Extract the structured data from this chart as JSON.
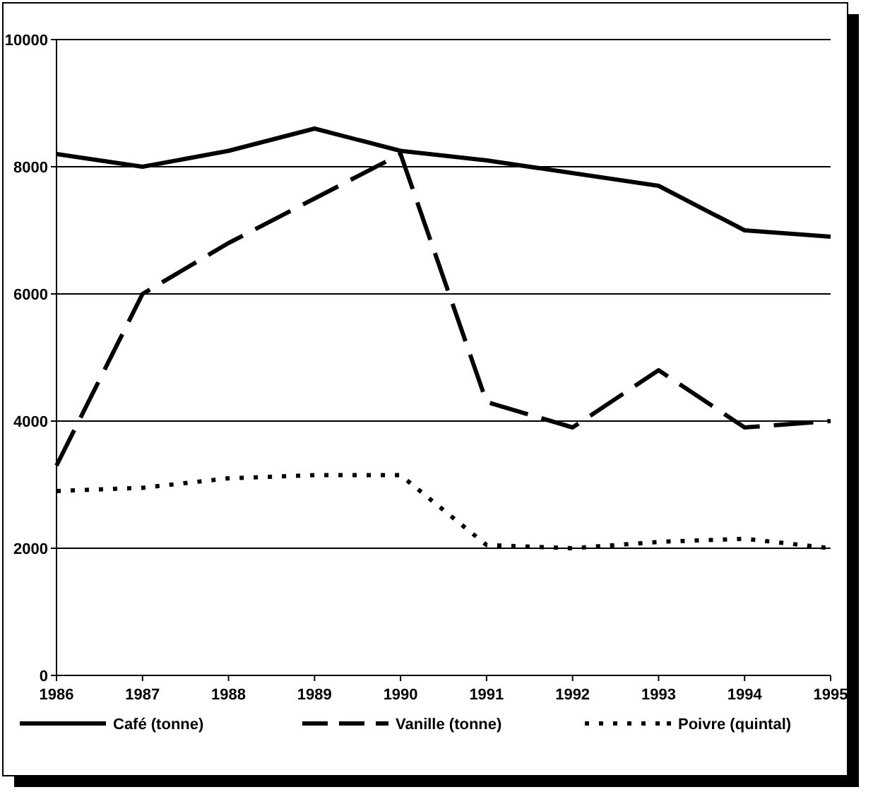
{
  "chart_data": {
    "type": "line",
    "x": [
      1986,
      1987,
      1988,
      1989,
      1990,
      1991,
      1992,
      1993,
      1994,
      1995
    ],
    "xlim": [
      1986,
      1995
    ],
    "xticks": [
      1986,
      1987,
      1988,
      1989,
      1990,
      1991,
      1992,
      1993,
      1994,
      1995
    ],
    "ylim": [
      0,
      10000
    ],
    "yticks": [
      0,
      2000,
      4000,
      6000,
      8000,
      10000
    ],
    "grid": "y",
    "legend": "bottom",
    "marker": "none",
    "series": [
      {
        "name": "Café (tonne)",
        "color": "#000000",
        "line_style": "solid",
        "values": [
          8200,
          8000,
          8250,
          8600,
          8250,
          8100,
          7900,
          7700,
          7000,
          6900
        ]
      },
      {
        "name": "Vanille (tonne)",
        "color": "#000000",
        "line_style": "dashed",
        "values": [
          3300,
          6000,
          6800,
          7500,
          8200,
          4300,
          3900,
          4800,
          3900,
          4000
        ]
      },
      {
        "name": "Poivre (quintal)",
        "color": "#000000",
        "line_style": "dotted",
        "values": [
          2900,
          2950,
          3100,
          3150,
          3150,
          2050,
          2000,
          2100,
          2150,
          2000
        ]
      }
    ]
  }
}
